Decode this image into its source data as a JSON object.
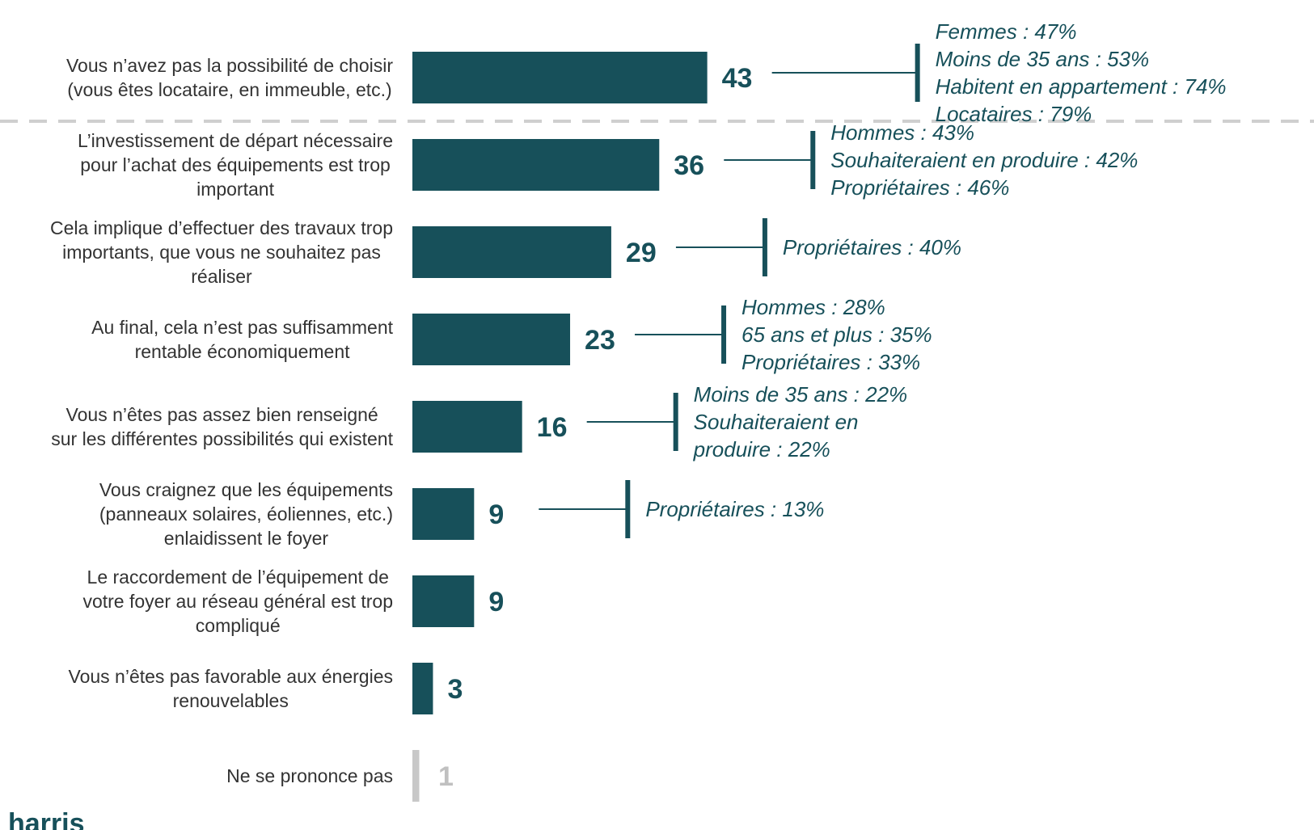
{
  "chart_data": {
    "type": "bar",
    "orientation": "horizontal",
    "categories": [
      "Vous n’avez pas la possibilité de choisir\n(vous êtes locataire, en immeuble, etc.)",
      "L’investissement de départ nécessaire\npour l’achat des équipements est trop\nimportant",
      "Cela implique d’effectuer des travaux trop\nimportants, que vous ne souhaitez pas\nréaliser",
      "Au final, cela n’est pas suffisamment\nrentable économiquement",
      "Vous n’êtes pas assez bien renseigné\nsur les différentes possibilités qui existent",
      "Vous craignez que les équipements\n(panneaux solaires, éoliennes, etc.)\nenlaidissent le foyer",
      "Le raccordement de l’équipement de\nvotre foyer au réseau général est trop\ncompliqué",
      "Vous n’êtes pas favorable aux énergies\nrenouvelables",
      "Ne se prononce pas"
    ],
    "values": [
      43,
      36,
      29,
      23,
      16,
      9,
      9,
      3,
      1
    ],
    "colors": [
      "#17505a",
      "#17505a",
      "#17505a",
      "#17505a",
      "#17505a",
      "#17505a",
      "#17505a",
      "#17505a",
      "#c8c8c8"
    ],
    "annotations": [
      [
        "Femmes : 47%",
        "Moins de 35 ans : 53%",
        "Habitent en appartement : 74%",
        "Locataires : 79%"
      ],
      [
        "Hommes : 43%",
        "Souhaiteraient en produire : 42%",
        "Propriétaires : 46%"
      ],
      [
        "Propriétaires : 40%"
      ],
      [
        "Hommes : 28%",
        "65 ans et plus : 35%",
        "Propriétaires : 33%"
      ],
      [
        "Moins de 35 ans : 22%",
        "Souhaiteraient en",
        "produire : 22%"
      ],
      [
        "Propriétaires : 13%"
      ],
      [],
      [],
      []
    ],
    "xlim": [
      0,
      100
    ],
    "logo": "harris"
  }
}
